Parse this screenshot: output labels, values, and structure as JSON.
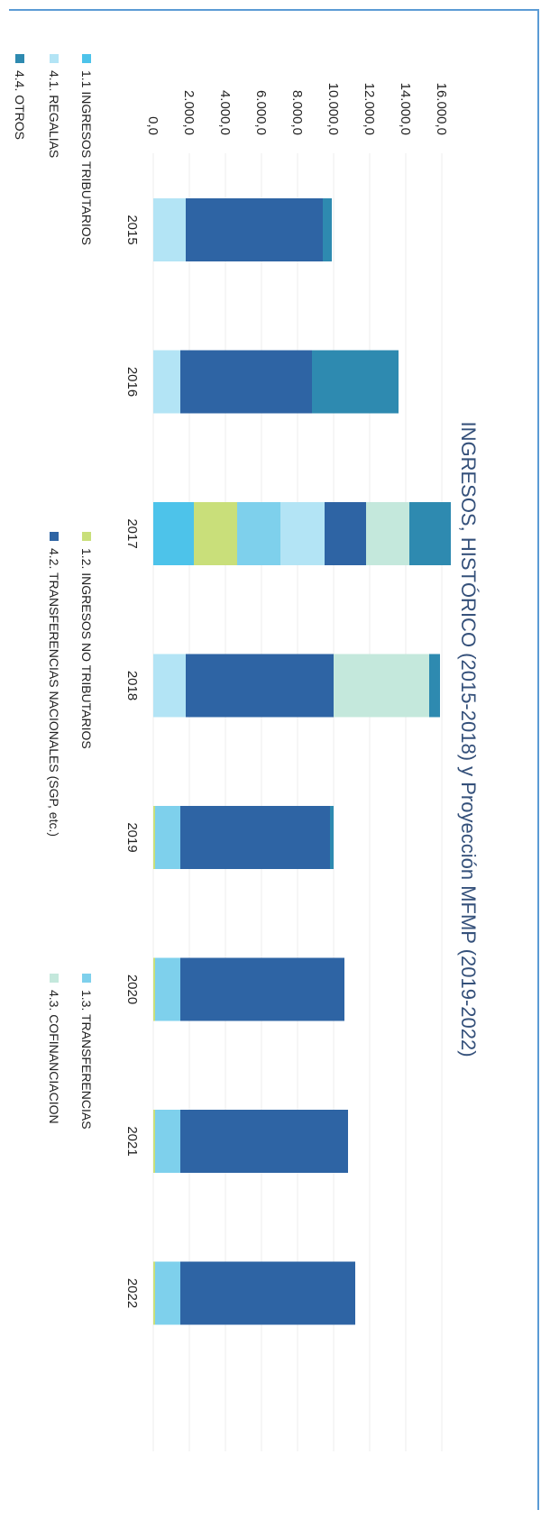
{
  "chart_data": {
    "type": "bar",
    "stacked": true,
    "orientation": "vertical",
    "rotated_page": "90deg-clockwise",
    "title": "INGRESOS,  HISTÓRICO (2015-2018) y Proyección MFMP (2019-2022)",
    "categories": [
      "2015",
      "2016",
      "2017",
      "2018",
      "2019",
      "2020",
      "2021",
      "2022"
    ],
    "yticks": [
      "0,0",
      "2.000,0",
      "4.000,0",
      "6.000,0",
      "8.000,0",
      "10.000,0",
      "12.000,0",
      "14.000,0",
      "16.000,0"
    ],
    "ylim": [
      0,
      16000
    ],
    "grid": true,
    "legend_position": "bottom",
    "series": [
      {
        "name": "1.1   INGRESOS TRIBUTARIOS",
        "color": "#4dc3ea",
        "values": [
          0,
          0,
          2250,
          0,
          0,
          0,
          0,
          0
        ]
      },
      {
        "name": "1.2.   INGRESOS NO TRIBUTARIOS",
        "color": "#c9df7a",
        "values": [
          0,
          0,
          2400,
          0,
          100,
          100,
          100,
          100
        ]
      },
      {
        "name": "1.3.   TRANSFERENCIAS",
        "color": "#7ed0ec",
        "values": [
          0,
          0,
          2400,
          0,
          1400,
          1400,
          1400,
          1400
        ]
      },
      {
        "name": "4.1.  REGALIAS",
        "color": "#b3e4f5",
        "values": [
          1800,
          1500,
          2450,
          1800,
          0,
          0,
          0,
          0
        ]
      },
      {
        "name": "4.2. TRANSFERENCIAS NACIONALES (SGP, etc.)",
        "color": "#2e64a4",
        "values": [
          7600,
          7300,
          2300,
          8200,
          8300,
          9100,
          9300,
          9700
        ]
      },
      {
        "name": "4.3. COFINANCIACION",
        "color": "#c4e8dc",
        "values": [
          0,
          0,
          2400,
          5300,
          0,
          0,
          0,
          0
        ]
      },
      {
        "name": "4.4. OTROS",
        "color": "#2e8ab0",
        "values": [
          500,
          4800,
          2300,
          600,
          200,
          0,
          0,
          0
        ]
      }
    ]
  }
}
